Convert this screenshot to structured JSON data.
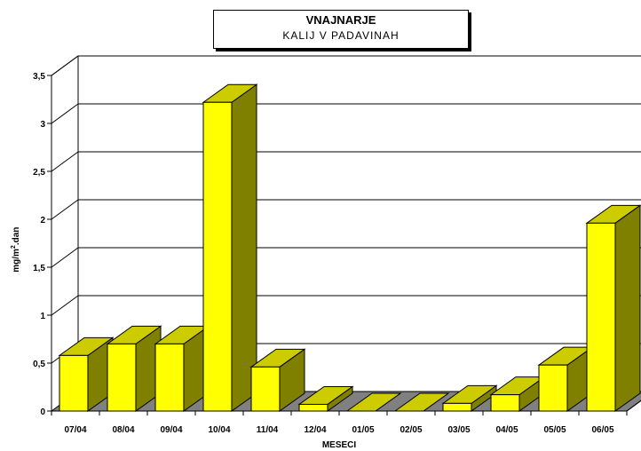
{
  "chart_data": {
    "type": "bar",
    "title": "VNAJNARJE",
    "subtitle": "KALIJ V PADAVINAH",
    "xlabel": "MESECI",
    "ylabel_prefix": "mg/m",
    "ylabel_sup": "2",
    "ylabel_suffix": ".dan",
    "ylim": [
      0,
      3.5
    ],
    "yticks": [
      "0",
      "0,5",
      "1",
      "1,5",
      "2",
      "2,5",
      "3",
      "3,5"
    ],
    "categories": [
      "07/04",
      "08/04",
      "09/04",
      "10/04",
      "11/04",
      "12/04",
      "01/05",
      "02/05",
      "03/05",
      "04/05",
      "05/05",
      "06/05"
    ],
    "values": [
      0.58,
      0.7,
      0.7,
      3.22,
      0.46,
      0.07,
      0,
      0,
      0.08,
      0.17,
      0.48,
      1.96
    ],
    "grid": true,
    "colors": {
      "front": "#ffff00",
      "top": "#cccc00",
      "side": "#808000",
      "floor": "#808080"
    }
  }
}
